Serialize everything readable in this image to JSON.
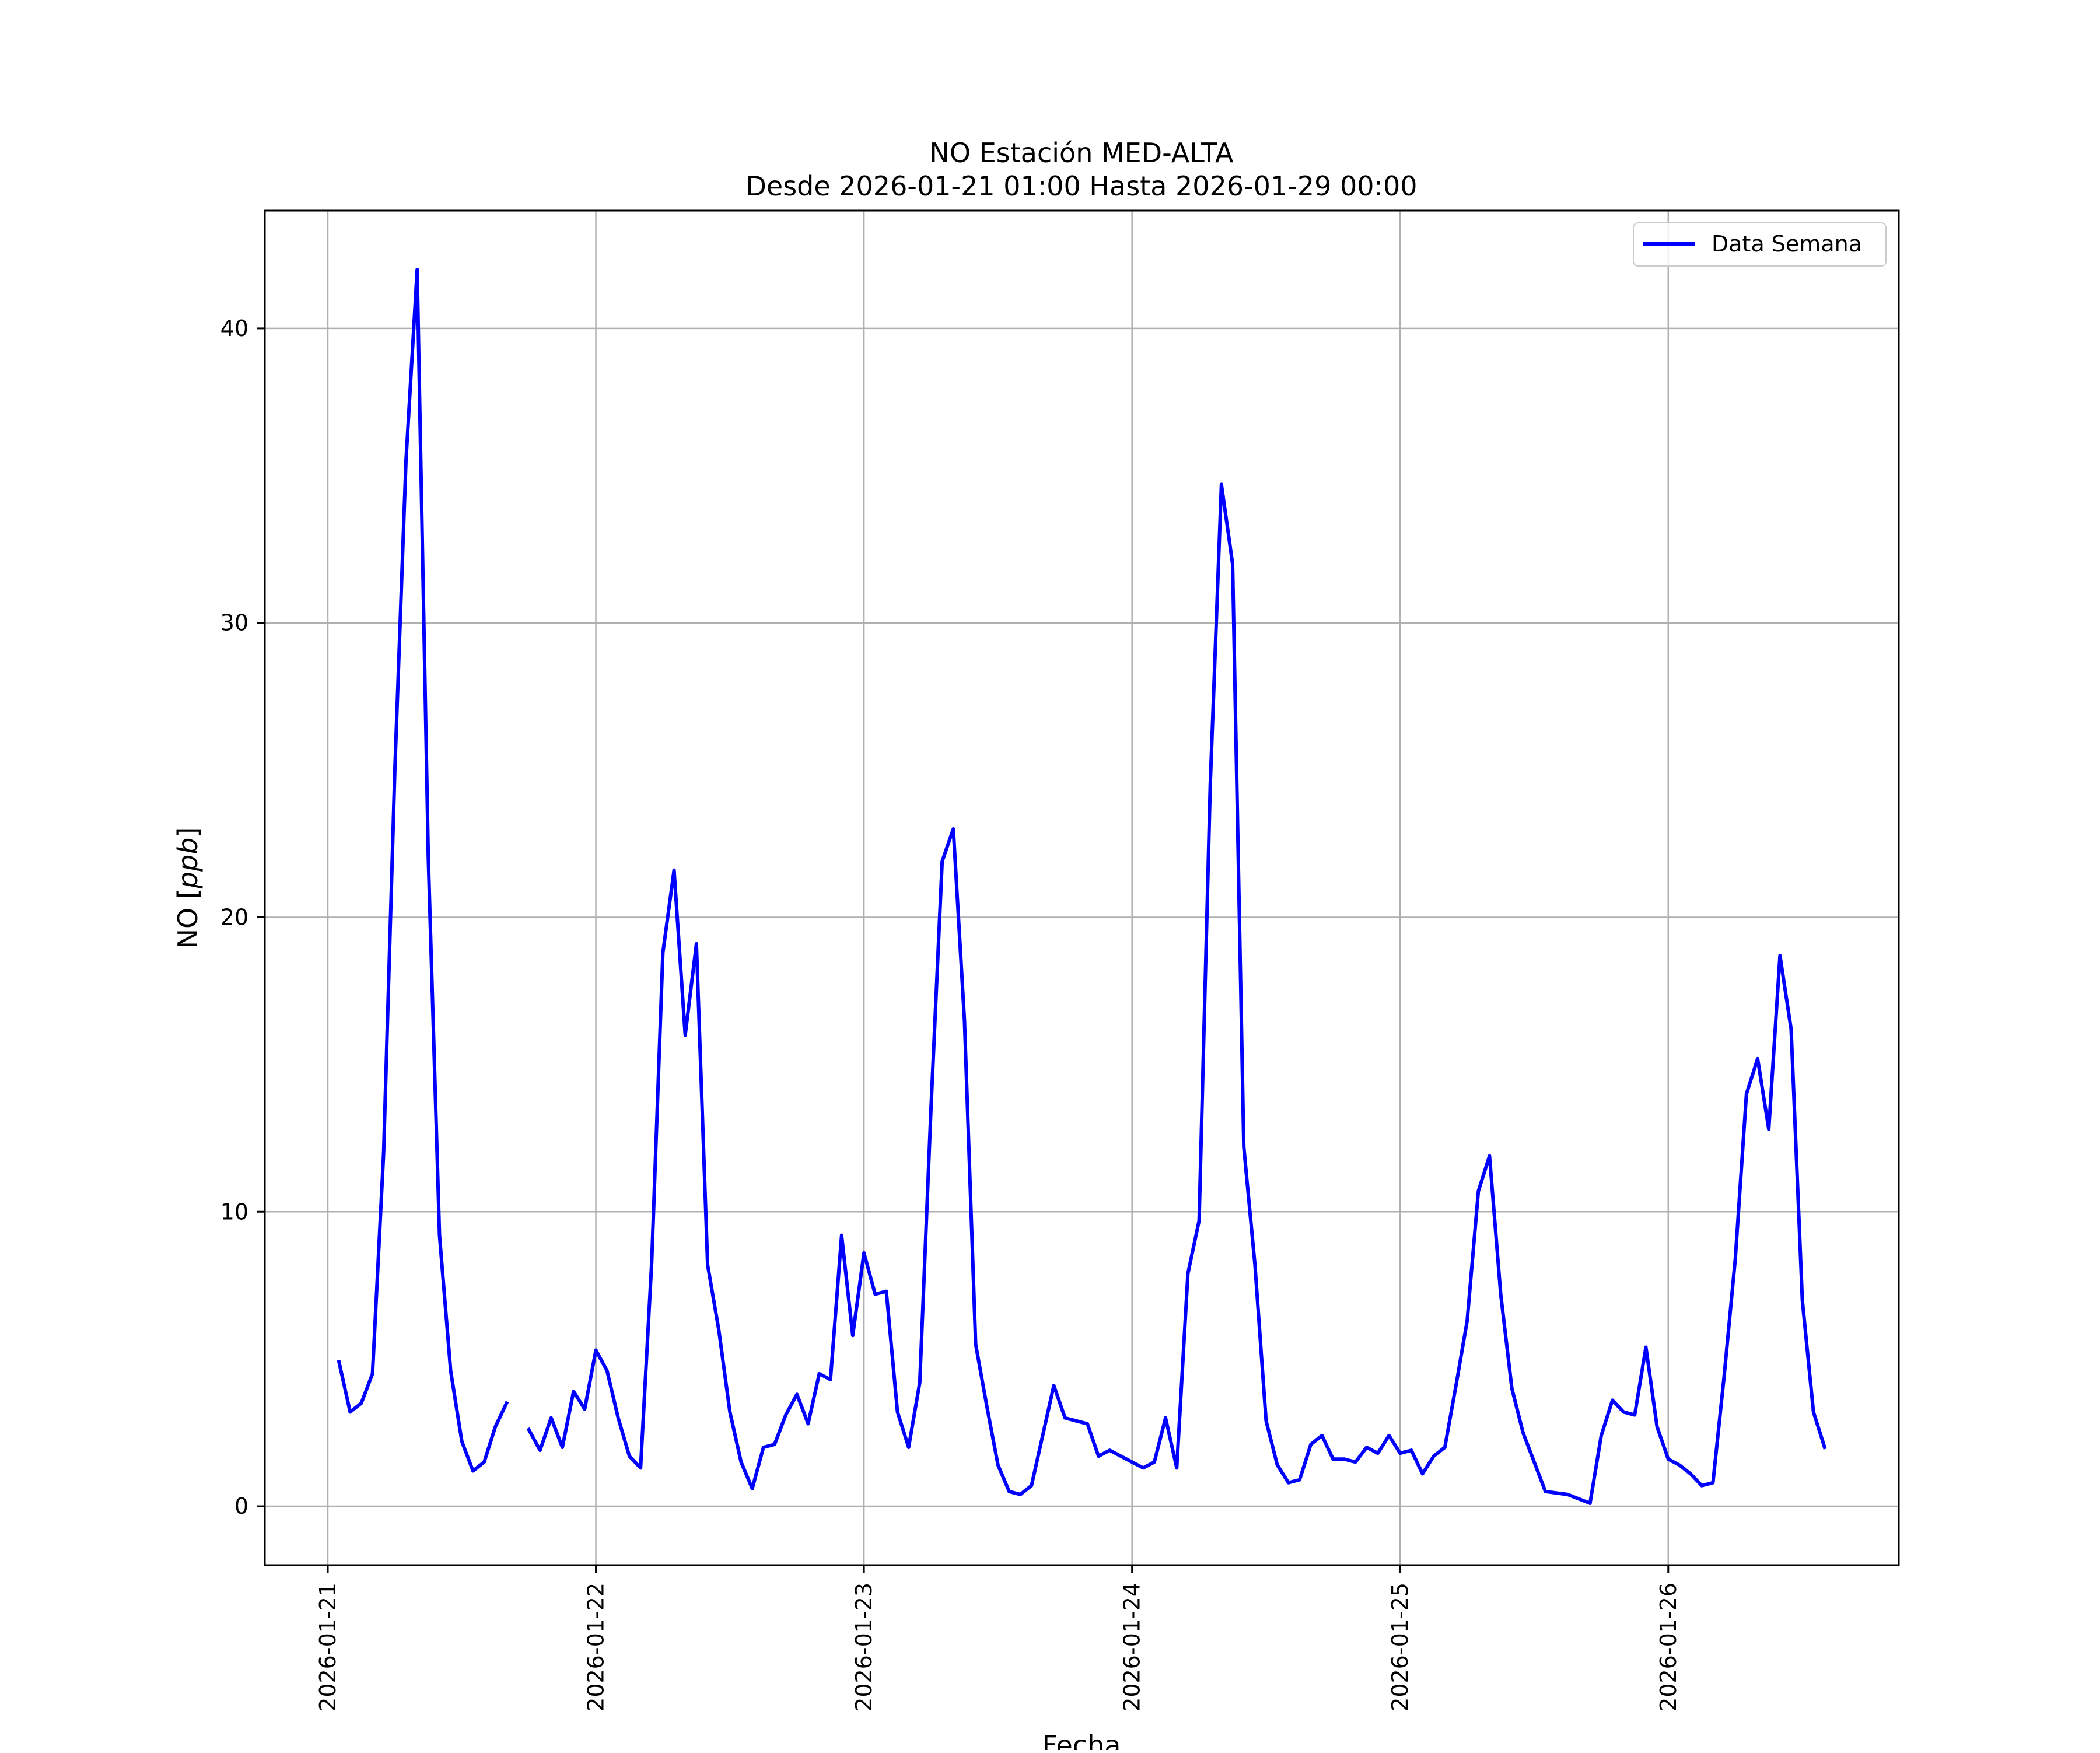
{
  "chart_data": {
    "type": "line",
    "title": "NO Estación MED-ALTA",
    "subtitle": "Desde 2026-01-21 01:00 Hasta 2026-01-29 00:00",
    "xlabel": "Fecha",
    "ylabel": "NO [ppb]",
    "ylabel_plain": "NO [",
    "ylabel_italic": "ppb",
    "ylabel_close": "]",
    "x_tick_labels": [
      "2026-01-21",
      "2026-01-22",
      "2026-01-23",
      "2026-01-24",
      "2026-01-25",
      "2026-01-26"
    ],
    "y_tick_labels": [
      "0",
      "10",
      "20",
      "30",
      "40"
    ],
    "xlim_days": [
      -0.235,
      5.86
    ],
    "ylim": [
      -2,
      44
    ],
    "grid": true,
    "legend_placement": "top-right",
    "colors": {
      "series": "#0000ff",
      "grid": "#b0b0b0",
      "axes": "#000000"
    },
    "series": [
      {
        "name": "Data Semana",
        "segments": [
          [
            [
              0.0417,
              4.9
            ],
            [
              0.0833,
              3.2
            ],
            [
              0.125,
              3.5
            ],
            [
              0.1667,
              4.5
            ],
            [
              0.2083,
              12.0
            ],
            [
              0.25,
              25.0
            ],
            [
              0.2917,
              35.5
            ],
            [
              0.3333,
              42.0
            ],
            [
              0.375,
              22.0
            ],
            [
              0.4167,
              9.2
            ],
            [
              0.4583,
              4.6
            ],
            [
              0.5,
              2.2
            ],
            [
              0.5417,
              1.2
            ],
            [
              0.5833,
              1.5
            ],
            [
              0.625,
              2.7
            ],
            [
              0.6667,
              3.5
            ]
          ],
          [
            [
              0.75,
              2.6
            ],
            [
              0.7917,
              1.9
            ],
            [
              0.8333,
              3.0
            ],
            [
              0.875,
              2.0
            ],
            [
              0.9167,
              3.9
            ],
            [
              0.9583,
              3.3
            ],
            [
              1.0,
              5.3
            ],
            [
              1.0417,
              4.6
            ],
            [
              1.0833,
              3.0
            ],
            [
              1.125,
              1.7
            ],
            [
              1.1667,
              1.3
            ],
            [
              1.2083,
              8.3
            ],
            [
              1.25,
              18.8
            ],
            [
              1.2917,
              21.6
            ],
            [
              1.3333,
              16.0
            ],
            [
              1.375,
              19.1
            ],
            [
              1.4167,
              8.2
            ],
            [
              1.4583,
              6.0
            ],
            [
              1.5,
              3.2
            ],
            [
              1.5417,
              1.5
            ],
            [
              1.5833,
              0.6
            ],
            [
              1.625,
              2.0
            ],
            [
              1.6667,
              2.1
            ],
            [
              1.7083,
              3.1
            ],
            [
              1.75,
              3.8
            ],
            [
              1.7917,
              2.8
            ],
            [
              1.8333,
              4.5
            ],
            [
              1.875,
              4.3
            ],
            [
              1.9167,
              9.2
            ],
            [
              1.9583,
              5.8
            ],
            [
              2.0,
              8.6
            ],
            [
              2.0417,
              7.2
            ],
            [
              2.0833,
              7.3
            ],
            [
              2.125,
              3.2
            ],
            [
              2.1667,
              2.0
            ],
            [
              2.2083,
              4.2
            ],
            [
              2.25,
              13.5
            ],
            [
              2.2917,
              21.9
            ],
            [
              2.3333,
              23.0
            ],
            [
              2.375,
              16.5
            ],
            [
              2.4167,
              5.5
            ],
            [
              2.4583,
              3.4
            ],
            [
              2.5,
              1.4
            ],
            [
              2.5417,
              0.5
            ],
            [
              2.5833,
              0.4
            ],
            [
              2.625,
              0.7
            ],
            [
              2.6667,
              2.4
            ],
            [
              2.7083,
              4.1
            ],
            [
              2.75,
              3.0
            ],
            [
              2.7917,
              2.9
            ],
            [
              2.8333,
              2.8
            ],
            [
              2.875,
              1.7
            ],
            [
              2.9167,
              1.9
            ],
            [
              2.9583,
              1.7
            ],
            [
              3.0,
              1.5
            ],
            [
              3.0417,
              1.3
            ],
            [
              3.0833,
              1.5
            ],
            [
              3.125,
              3.0
            ],
            [
              3.1667,
              1.3
            ],
            [
              3.2083,
              7.9
            ],
            [
              3.25,
              9.7
            ],
            [
              3.2917,
              24.5
            ],
            [
              3.3333,
              34.7
            ],
            [
              3.375,
              32.0
            ],
            [
              3.4167,
              12.2
            ],
            [
              3.4583,
              8.2
            ],
            [
              3.5,
              2.9
            ],
            [
              3.5417,
              1.4
            ],
            [
              3.5833,
              0.8
            ],
            [
              3.625,
              0.9
            ],
            [
              3.6667,
              2.1
            ],
            [
              3.7083,
              2.4
            ],
            [
              3.75,
              1.6
            ],
            [
              3.7917,
              1.6
            ],
            [
              3.8333,
              1.5
            ],
            [
              3.875,
              2.0
            ],
            [
              3.9167,
              1.8
            ],
            [
              3.9583,
              2.4
            ],
            [
              4.0,
              1.8
            ],
            [
              4.0417,
              1.9
            ],
            [
              4.0833,
              1.1
            ],
            [
              4.125,
              1.7
            ],
            [
              4.1667,
              2.0
            ],
            [
              4.2083,
              4.1
            ],
            [
              4.25,
              6.3
            ],
            [
              4.2917,
              10.7
            ],
            [
              4.3333,
              11.9
            ],
            [
              4.375,
              7.2
            ],
            [
              4.4167,
              4.0
            ],
            [
              4.4583,
              2.5
            ],
            [
              4.5,
              1.5
            ],
            [
              4.5417,
              0.5
            ],
            [
              4.625,
              0.4
            ],
            [
              4.7083,
              0.1
            ],
            [
              4.75,
              2.4
            ],
            [
              4.7917,
              3.6
            ],
            [
              4.8333,
              3.2
            ],
            [
              4.875,
              3.1
            ],
            [
              4.9167,
              5.4
            ],
            [
              4.9583,
              2.7
            ],
            [
              5.0,
              1.6
            ],
            [
              5.0417,
              1.4
            ],
            [
              5.0833,
              1.1
            ],
            [
              5.125,
              0.7
            ],
            [
              5.1667,
              0.8
            ],
            [
              5.2083,
              4.4
            ],
            [
              5.25,
              8.4
            ],
            [
              5.2917,
              14.0
            ],
            [
              5.3333,
              15.2
            ],
            [
              5.375,
              12.8
            ],
            [
              5.4167,
              18.7
            ],
            [
              5.4583,
              16.2
            ],
            [
              5.5,
              7.0
            ],
            [
              5.5417,
              3.2
            ],
            [
              5.5833,
              2.0
            ]
          ]
        ]
      }
    ]
  }
}
